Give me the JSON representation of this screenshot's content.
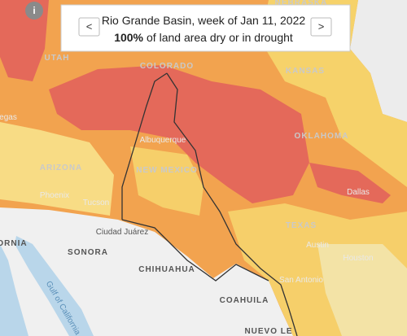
{
  "header": {
    "title": "Rio Grande Basin, week of Jan 11, 2022",
    "percent": "100%",
    "subtitle": "of land area dry or in drought",
    "prev": "<",
    "next": ">"
  },
  "info": "i",
  "labels": [
    "NEBRASKA",
    "UTAH",
    "COLORADO",
    "KANSAS",
    "egas",
    "Albuquerque",
    "OKLAHOMA",
    "ARIZONA",
    "NEW MEXICO",
    "Phoenix",
    "Tucson",
    "Dallas",
    "TEXAS",
    "Ciudad Juárez",
    "ORNIA",
    "SONORA",
    "Austin",
    "Houston",
    "CHIHUAHUA",
    "San Antonio",
    "COAHUILA",
    "Gulf of California",
    "NUEVO LE"
  ]
}
